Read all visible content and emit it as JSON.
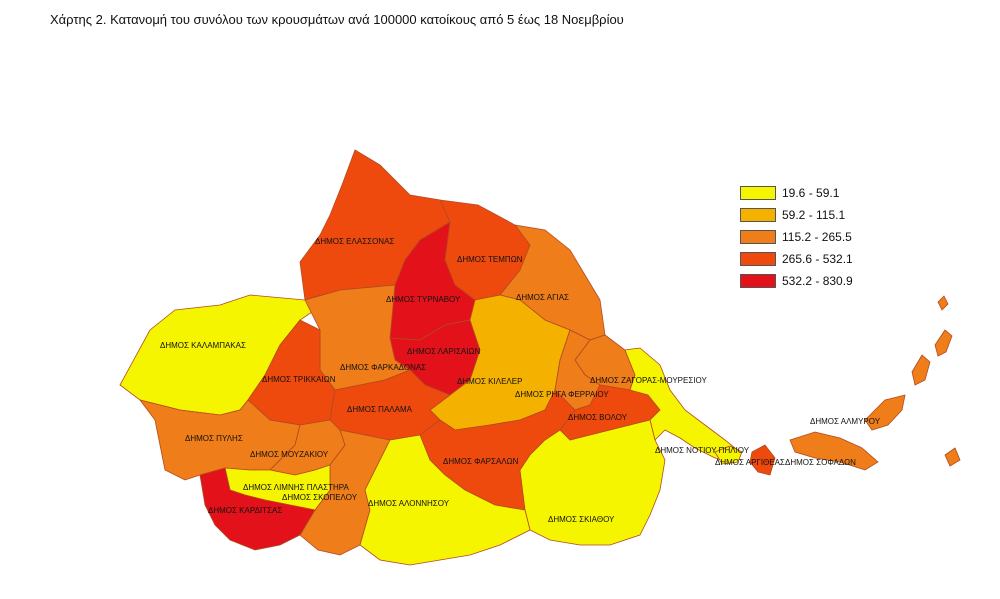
{
  "title": "Χάρτης 2. Κατανομή του συνόλου των κρουσμάτων ανά 100000 κατοίκους από 5 έως 18 Νοεμβρίου",
  "legend": [
    {
      "label": "19.6 - 59.1",
      "color": "#f5f500"
    },
    {
      "label": "59.2 - 115.1",
      "color": "#f5b100"
    },
    {
      "label": "115.2 - 265.5",
      "color": "#ee7d1a"
    },
    {
      "label": "265.6 - 532.1",
      "color": "#ee4a0e"
    },
    {
      "label": "532.2 - 830.9",
      "color": "#e3121a"
    }
  ],
  "regions": [
    {
      "name": "ΔΗΜΟΣ ΕΛΑΣΣΟΝΑΣ",
      "class": 3
    },
    {
      "name": "ΔΗΜΟΣ ΤΕΜΠΩΝ",
      "class": 3
    },
    {
      "name": "ΔΗΜΟΣ ΑΓΙΑΣ",
      "class": 2
    },
    {
      "name": "ΔΗΜΟΣ ΤΥΡΝΑΒΟΥ",
      "class": 4
    },
    {
      "name": "ΔΗΜΟΣ ΛΑΡΙΣΑΙΩΝ",
      "class": 4
    },
    {
      "name": "ΔΗΜΟΣ ΚΑΛΑΜΠΑΚΑΣ",
      "class": 0
    },
    {
      "name": "ΔΗΜΟΣ ΦΑΡΚΑΔΟΝΑΣ",
      "class": 2
    },
    {
      "name": "ΔΗΜΟΣ ΤΡΙΚΚΑΙΩΝ",
      "class": 3
    },
    {
      "name": "ΔΗΜΟΣ ΚΙΛΕΛΕΡ",
      "class": 1
    },
    {
      "name": "ΔΗΜΟΣ ΖΑΓΟΡΑΣ-ΜΟΥΡΕΣΙΟΥ",
      "class": 2
    },
    {
      "name": "ΔΗΜΟΣ ΡΗΓΑ ΦΕΡΡΑΙΟΥ",
      "class": 2
    },
    {
      "name": "ΔΗΜΟΣ ΠΑΛΑΜΑ",
      "class": 3
    },
    {
      "name": "ΔΗΜΟΣ ΒΟΛΟΥ",
      "class": 3
    },
    {
      "name": "ΔΗΜΟΣ ΠΥΛΗΣ",
      "class": 2
    },
    {
      "name": "ΔΗΜΟΣ ΜΟΥΖΑΚΙΟΥ",
      "class": 2
    },
    {
      "name": "ΔΗΜΟΣ ΦΑΡΣΑΛΩΝ",
      "class": 3
    },
    {
      "name": "ΔΗΜΟΣ ΝΟΤΙΟΥ ΠΗΛΙΟΥ",
      "class": 0
    },
    {
      "name": "ΔΗΜΟΣ ΣΚΙΑΘΟΥ",
      "class": 0
    },
    {
      "name": "ΔΗΜΟΣ ΣΚΟΠΕΛΟΥ",
      "class": 2
    },
    {
      "name": "ΔΗΜΟΣ ΑΛΟΝΝΗΣΟΥ",
      "class": 0
    },
    {
      "name": "ΔΗΜΟΣ ΛΙΜΝΗΣ ΠΛΑΣΤΗΡΑ",
      "class": 0
    },
    {
      "name": "ΔΗΜΟΣ ΚΑΡΔΙΤΣΑΣ",
      "class": 4
    },
    {
      "name": "ΔΗΜΟΣ ΑΡΓΙΘΕΑΣ",
      "class": 0
    },
    {
      "name": "ΔΗΜΟΣ ΣΟΦΑΔΩΝ",
      "class": 3
    },
    {
      "name": "ΔΗΜΟΣ ΑΛΜΥΡΟΥ",
      "class": 2
    }
  ]
}
